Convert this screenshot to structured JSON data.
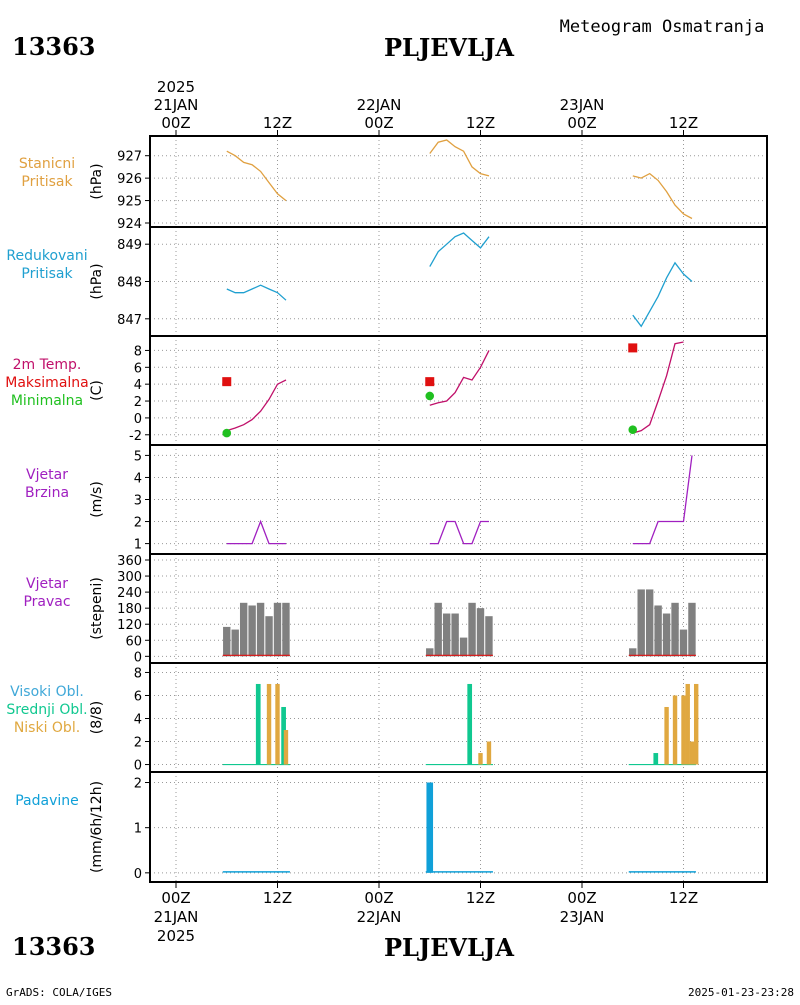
{
  "header": {
    "station_id": "13363",
    "station_name": "PLJEVLJA",
    "title": "Meteogram Osmatranja"
  },
  "footer": {
    "station_id": "13363",
    "station_name": "PLJEVLJA",
    "credit": "GrADS: COLA/IGES",
    "timestamp": "2025-01-23-23:28"
  },
  "time_axis": {
    "top_year": "2025",
    "bottom_year": "2025",
    "hours_range": [
      -3,
      57
    ],
    "ticks": [
      {
        "hour": 0,
        "label": "00Z",
        "date": "21JAN"
      },
      {
        "hour": 12,
        "label": "12Z",
        "date": ""
      },
      {
        "hour": 24,
        "label": "00Z",
        "date": "22JAN"
      },
      {
        "hour": 36,
        "label": "12Z",
        "date": ""
      },
      {
        "hour": 48,
        "label": "00Z",
        "date": "23JAN"
      },
      {
        "hour": 60,
        "label": "12Z",
        "date": ""
      }
    ]
  },
  "colors": {
    "pressure_station": "#e0a040",
    "pressure_reduced": "#20a0d0",
    "temp": "#c0106a",
    "tmax": "#e01010",
    "tmin": "#20c020",
    "wind": "#a020c0",
    "wind_dir_bar": "#808080",
    "cloud_high": "#40a8d8",
    "cloud_mid": "#10c890",
    "cloud_low": "#e0a840",
    "precip": "#10a0d8"
  },
  "chart_data": [
    {
      "type": "line",
      "id": "stanicni",
      "labels": [
        "Stanicni",
        "Pritisak"
      ],
      "ylabel": "(hPa)",
      "ylim": [
        924,
        927.7
      ],
      "yticks": [
        924,
        925,
        926,
        927
      ],
      "series": [
        {
          "color_key": "pressure_station",
          "segments": [
            [
              [
                6,
                927.2
              ],
              [
                7,
                927.0
              ],
              [
                8,
                926.7
              ],
              [
                9,
                926.6
              ],
              [
                10,
                926.3
              ],
              [
                11,
                925.8
              ],
              [
                12,
                925.3
              ],
              [
                13,
                925.0
              ]
            ],
            [
              [
                30,
                927.1
              ],
              [
                31,
                927.6
              ],
              [
                32,
                927.7
              ],
              [
                33,
                927.4
              ],
              [
                34,
                927.2
              ],
              [
                35,
                926.5
              ],
              [
                36,
                926.2
              ],
              [
                37,
                926.1
              ]
            ],
            [
              [
                54,
                926.1
              ],
              [
                55,
                926.0
              ],
              [
                56,
                926.2
              ],
              [
                57,
                925.9
              ],
              [
                58,
                925.4
              ],
              [
                59,
                924.8
              ],
              [
                60,
                924.4
              ],
              [
                61,
                924.2
              ]
            ]
          ]
        }
      ]
    },
    {
      "type": "line",
      "id": "redukovani",
      "labels": [
        "Redukovani",
        "Pritisak"
      ],
      "ylabel": "(hPa)",
      "ylim": [
        846.7,
        849.3
      ],
      "yticks": [
        847,
        848,
        849
      ],
      "series": [
        {
          "color_key": "pressure_reduced",
          "segments": [
            [
              [
                6,
                847.8
              ],
              [
                7,
                847.7
              ],
              [
                8,
                847.7
              ],
              [
                9,
                847.8
              ],
              [
                10,
                847.9
              ],
              [
                11,
                847.8
              ],
              [
                12,
                847.7
              ],
              [
                13,
                847.5
              ]
            ],
            [
              [
                30,
                848.4
              ],
              [
                31,
                848.8
              ],
              [
                32,
                849.0
              ],
              [
                33,
                849.2
              ],
              [
                34,
                849.3
              ],
              [
                35,
                849.1
              ],
              [
                36,
                848.9
              ],
              [
                37,
                849.2
              ]
            ],
            [
              [
                54,
                847.1
              ],
              [
                55,
                846.8
              ],
              [
                56,
                847.2
              ],
              [
                57,
                847.6
              ],
              [
                58,
                848.1
              ],
              [
                59,
                848.5
              ],
              [
                60,
                848.2
              ],
              [
                61,
                848.0
              ]
            ]
          ]
        }
      ]
    },
    {
      "type": "line",
      "id": "temperature",
      "labels": [
        "2m Temp.",
        "Maksimalna",
        "Minimalna"
      ],
      "ylabel": "(C)",
      "ylim": [
        -2.5,
        9.0
      ],
      "yticks": [
        -2,
        0,
        2,
        4,
        6,
        8
      ],
      "series": [
        {
          "color_key": "temp",
          "segments": [
            [
              [
                6,
                -1.5
              ],
              [
                7,
                -1.2
              ],
              [
                8,
                -0.8
              ],
              [
                9,
                -0.2
              ],
              [
                10,
                0.8
              ],
              [
                11,
                2.2
              ],
              [
                12,
                4.0
              ],
              [
                13,
                4.5
              ]
            ],
            [
              [
                30,
                1.5
              ],
              [
                31,
                1.8
              ],
              [
                32,
                2.0
              ],
              [
                33,
                3.0
              ],
              [
                34,
                4.8
              ],
              [
                35,
                4.5
              ],
              [
                36,
                6.0
              ],
              [
                37,
                8.0
              ]
            ],
            [
              [
                54,
                -1.8
              ],
              [
                55,
                -1.5
              ],
              [
                56,
                -0.8
              ],
              [
                57,
                2.0
              ],
              [
                58,
                5.0
              ],
              [
                59,
                8.8
              ],
              [
                60,
                9.0
              ]
            ]
          ]
        }
      ],
      "tmax_points": [
        [
          6,
          4.3
        ],
        [
          30,
          4.3
        ],
        [
          54,
          8.3
        ]
      ],
      "tmin_points": [
        [
          6,
          -1.8
        ],
        [
          30,
          2.6
        ],
        [
          54,
          -1.4
        ]
      ]
    },
    {
      "type": "line",
      "id": "wind_speed",
      "labels": [
        "Vjetar",
        "Brzina"
      ],
      "ylabel": "(m/s)",
      "ylim": [
        0.8,
        5.2
      ],
      "yticks": [
        1,
        2,
        3,
        4,
        5
      ],
      "series": [
        {
          "color_key": "wind",
          "segments": [
            [
              [
                6,
                1
              ],
              [
                7,
                1
              ],
              [
                8,
                1
              ],
              [
                9,
                1
              ],
              [
                10,
                2
              ],
              [
                11,
                1
              ],
              [
                12,
                1
              ],
              [
                13,
                1
              ]
            ],
            [
              [
                30,
                1
              ],
              [
                31,
                1
              ],
              [
                32,
                2
              ],
              [
                33,
                2
              ],
              [
                34,
                1
              ],
              [
                35,
                1
              ],
              [
                36,
                2
              ],
              [
                37,
                2
              ]
            ],
            [
              [
                54,
                1
              ],
              [
                55,
                1
              ],
              [
                56,
                1
              ],
              [
                57,
                2
              ],
              [
                58,
                2
              ],
              [
                59,
                2
              ],
              [
                60,
                2
              ],
              [
                61,
                5
              ]
            ]
          ]
        }
      ]
    },
    {
      "type": "bar",
      "id": "wind_direction",
      "labels": [
        "Vjetar",
        "Pravac"
      ],
      "ylabel": "(stepeni)",
      "ylim": [
        -10,
        360
      ],
      "yticks": [
        0,
        60,
        120,
        180,
        240,
        300,
        360
      ],
      "color_key": "wind_dir_bar",
      "bars": [
        [
          6,
          110
        ],
        [
          7,
          100
        ],
        [
          8,
          200
        ],
        [
          9,
          190
        ],
        [
          10,
          200
        ],
        [
          11,
          150
        ],
        [
          12,
          200
        ],
        [
          13,
          200
        ],
        [
          30,
          30
        ],
        [
          31,
          200
        ],
        [
          32,
          160
        ],
        [
          33,
          160
        ],
        [
          34,
          70
        ],
        [
          35,
          200
        ],
        [
          36,
          180
        ],
        [
          37,
          150
        ],
        [
          54,
          30
        ],
        [
          55,
          250
        ],
        [
          56,
          250
        ],
        [
          57,
          190
        ],
        [
          58,
          160
        ],
        [
          59,
          200
        ],
        [
          60,
          100
        ],
        [
          61,
          200
        ]
      ]
    },
    {
      "type": "bar",
      "id": "clouds",
      "labels": [
        "Visoki Obl.",
        "Srednji Obl.",
        "Niski Obl."
      ],
      "ylabel": "(8/8)",
      "ylim": [
        -0.3,
        8.3
      ],
      "yticks": [
        0,
        2,
        4,
        6,
        8
      ],
      "bars_mid": [
        [
          10,
          7.0
        ],
        [
          13,
          5.0
        ],
        [
          35,
          7.0
        ],
        [
          57,
          1.0
        ]
      ],
      "bars_low": [
        [
          11,
          7.0
        ],
        [
          12,
          7.0
        ],
        [
          13,
          3.0
        ],
        [
          36,
          1.0
        ],
        [
          37,
          2.0
        ],
        [
          58,
          5.0
        ],
        [
          59,
          6.0
        ],
        [
          60,
          6.0
        ],
        [
          61,
          2.0
        ],
        [
          62,
          7.0
        ],
        [
          63,
          7.0
        ]
      ]
    },
    {
      "type": "bar",
      "id": "precip",
      "labels": [
        "Padavine"
      ],
      "ylabel": "(mm/6h/12h)",
      "ylim": [
        -0.07,
        2.1
      ],
      "yticks": [
        0,
        1,
        2
      ],
      "color_key": "precip",
      "bars": [
        [
          30,
          2.0
        ]
      ],
      "baseline_ranges": [
        [
          6,
          13
        ],
        [
          30,
          37
        ],
        [
          54,
          61
        ]
      ]
    }
  ]
}
